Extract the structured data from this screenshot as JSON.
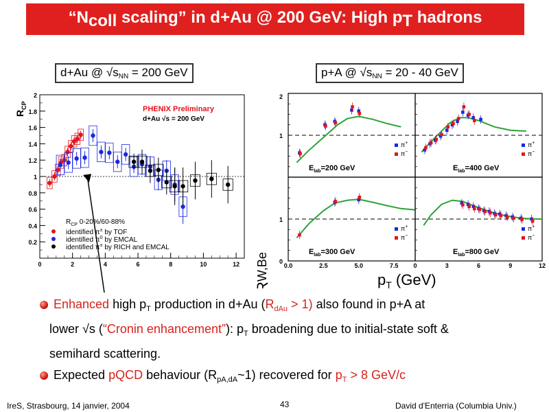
{
  "title": {
    "prefix": "“N",
    "sub": "coll",
    "middle": " scaling” in d+Au @ 200 GeV: High p",
    "sub2": "T",
    "suffix": " hadrons"
  },
  "left_box": {
    "pre": "d+Au @ √s",
    "sub": "NN",
    "post": " = 200 GeV"
  },
  "right_box": {
    "pre": "p+A @ √s",
    "sub": "NN",
    "post": " = 20 - 40 GeV"
  },
  "left_plot": {
    "ylabel": "R",
    "ylabel_sub": "CP",
    "header1": "PHENIX Preliminary",
    "header2": "d+Au √s = 200 GeV",
    "legend_title": "R",
    "legend_title_sub": "CP",
    "legend_title_post": " 0-20%/60-88%",
    "legend": [
      {
        "label": "identified π",
        "sup": "±",
        "post": " by TOF",
        "color": "#e4141c"
      },
      {
        "label": "identified π",
        "sup": "0",
        "post": " by EMCAL",
        "color": "#1a29e0"
      },
      {
        "label": "identified π",
        "sup": "±",
        "post": " by RICH and EMCAL",
        "color": "#000000"
      }
    ],
    "xticks": [
      "0",
      "2",
      "4",
      "6",
      "8",
      "10",
      "12"
    ],
    "yticks": [
      "0.2",
      "0.4",
      "0.6",
      "0.8",
      "1",
      "1.2",
      "1.4",
      "1.6",
      "1.8",
      "2"
    ]
  },
  "chart_data": [
    {
      "type": "scatter",
      "ylabel": "R_CP",
      "xlim": [
        0,
        12.5
      ],
      "ylim": [
        0,
        2
      ],
      "series": [
        {
          "name": "identified π± by TOF",
          "color": "#e4141c",
          "x": [
            0.6,
            0.9,
            1.1,
            1.3,
            1.5,
            1.7,
            1.9,
            2.1,
            2.3,
            2.5
          ],
          "y": [
            0.92,
            1.0,
            1.08,
            1.17,
            1.2,
            1.3,
            1.37,
            1.43,
            1.46,
            1.51
          ]
        },
        {
          "name": "identified π0 by EMCAL",
          "color": "#1a29e0",
          "x": [
            1.25,
            1.75,
            2.25,
            2.75,
            3.25,
            3.75,
            4.25,
            4.75,
            5.25,
            5.75,
            6.25,
            6.75,
            7.25,
            7.75,
            8.25,
            8.75
          ],
          "y": [
            1.14,
            1.17,
            1.22,
            1.23,
            1.5,
            1.3,
            1.29,
            1.18,
            1.27,
            1.12,
            1.15,
            1.12,
            0.96,
            1.07,
            0.9,
            0.63
          ]
        },
        {
          "name": "identified π± by RICH and EMCAL",
          "color": "#000000",
          "x": [
            5.75,
            6.25,
            6.75,
            7.25,
            7.75,
            8.25,
            8.75,
            9.5,
            10.5,
            11.5
          ],
          "y": [
            1.18,
            1.18,
            1.07,
            1.08,
            0.93,
            0.88,
            0.88,
            0.95,
            0.97,
            0.9
          ]
        }
      ]
    },
    {
      "type": "scatter",
      "ylabel": "R_W,Be",
      "xlabel": "p_T (GeV)",
      "panels": [
        {
          "label": "E_lab=200 GeV",
          "xlim": [
            0,
            9
          ],
          "ylim": [
            0,
            2
          ],
          "series": [
            {
              "name": "π+",
              "color": "#1a29e0",
              "x": [
                0.8,
                2.6,
                3.3,
                4.5,
                5.0
              ],
              "y": [
                0.58,
                1.25,
                1.33,
                1.6,
                1.58
              ]
            },
            {
              "name": "π-",
              "color": "#e4141c",
              "x": [
                0.85,
                2.65,
                3.35,
                4.55,
                5.05
              ],
              "y": [
                0.56,
                1.22,
                1.3,
                1.68,
                1.52
              ]
            }
          ]
        },
        {
          "label": "E_lab=400 GeV",
          "xlim": [
            0,
            12
          ],
          "ylim": [
            0,
            2
          ],
          "series": [
            {
              "name": "π+",
              "color": "#1a29e0",
              "x": [
                0.9,
                1.4,
                1.9,
                2.4,
                3.0,
                3.5,
                4.0,
                4.5,
                5.0,
                5.5,
                6.2
              ],
              "y": [
                0.65,
                0.8,
                0.88,
                0.98,
                1.12,
                1.25,
                1.33,
                1.55,
                1.48,
                1.42,
                1.38
              ]
            },
            {
              "name": "π-",
              "color": "#e4141c",
              "x": [
                1.0,
                1.5,
                2.0,
                2.5,
                3.1,
                3.6,
                4.1,
                4.6,
                5.1,
                5.6
              ],
              "y": [
                0.7,
                0.82,
                0.9,
                1.02,
                1.2,
                1.28,
                1.4,
                1.68,
                1.5,
                1.35
              ]
            }
          ]
        },
        {
          "label": "E_lab=300 GeV",
          "xlim": [
            0,
            9
          ],
          "ylim": [
            0,
            2
          ],
          "series": [
            {
              "name": "π+",
              "color": "#1a29e0",
              "x": [
                3.3,
                5.0
              ],
              "y": [
                1.4,
                1.46
              ]
            },
            {
              "name": "π-",
              "color": "#e4141c",
              "x": [
                0.8,
                3.35,
                5.05
              ],
              "y": [
                0.62,
                1.42,
                1.52
              ]
            }
          ]
        },
        {
          "label": "E_lab=800 GeV",
          "xlim": [
            0,
            12
          ],
          "ylim": [
            0,
            2
          ],
          "series": [
            {
              "name": "π+",
              "color": "#1a29e0",
              "x": [
                4.4,
                5.0,
                5.5,
                6.0,
                6.5,
                7.0,
                7.5,
                8.0,
                8.6,
                9.2,
                10.0,
                11.0
              ],
              "y": [
                1.38,
                1.35,
                1.3,
                1.25,
                1.2,
                1.18,
                1.13,
                1.12,
                1.08,
                1.05,
                1.02,
                1.0
              ]
            },
            {
              "name": "π-",
              "color": "#e4141c",
              "x": [
                4.5,
                5.1,
                5.6,
                6.1,
                6.6,
                7.1,
                7.6,
                8.1,
                8.7,
                9.3,
                10.1,
                11.1
              ],
              "y": [
                1.34,
                1.3,
                1.25,
                1.23,
                1.18,
                1.15,
                1.1,
                1.08,
                1.05,
                1.02,
                0.99,
                0.95
              ]
            }
          ]
        }
      ]
    }
  ],
  "right_plot": {
    "ylabel": "R",
    "ylabel_sub": "W,Be",
    "xlabel_p": "p",
    "xlabel_sub": "T",
    "xlabel_post": " (GeV)",
    "panels": [
      "200",
      "400",
      "300",
      "800"
    ],
    "elab_prefix": "E",
    "elab_sub": "lab",
    "elab_mid": "=",
    "elab_post": " GeV",
    "yticks_top": [
      "1",
      "2"
    ],
    "yticks_bot": [
      "0",
      "1"
    ],
    "xticks_left": [
      "0.0",
      "2.5",
      "5.0",
      "7.5"
    ],
    "xticks_right": [
      "0",
      "3",
      "6",
      "9",
      "12"
    ],
    "legend": [
      {
        "sym": "π",
        "sup": "+",
        "color": "#1a29e0"
      },
      {
        "sym": "π",
        "sup": "−",
        "color": "#e4141c"
      }
    ]
  },
  "bullets": {
    "b1_red1": "Enhanced",
    "b1_t1": " high p",
    "b1_sub1": "T",
    "b1_t2": " production in d+Au (",
    "b1_red2": "R",
    "b1_red2sub": "dAu",
    "b1_red3": " > 1)",
    "b1_t3": " also found in p+A at",
    "b1_line2a": "lower √s (",
    "b1_red4": "“Cronin enhancement”",
    "b1_line2b": "): p",
    "b1_sub2": "T",
    "b1_line2c": " broadening due to initial-state soft &",
    "b1_line3": "semihard scattering.",
    "b2_t1": "Expected ",
    "b2_red1": "pQCD",
    "b2_t2": " behaviour (R",
    "b2_sub": "pA,dA",
    "b2_t3": "~1) recovered for ",
    "b2_red2": "p",
    "b2_red2sub": "T",
    "b2_red3": " > 8 GeV/c"
  },
  "footer": {
    "left": "IreS, Strasbourg, 14 janvier, 2004",
    "center": "43",
    "right": "David d'Enterria (Columbia Univ.)"
  }
}
